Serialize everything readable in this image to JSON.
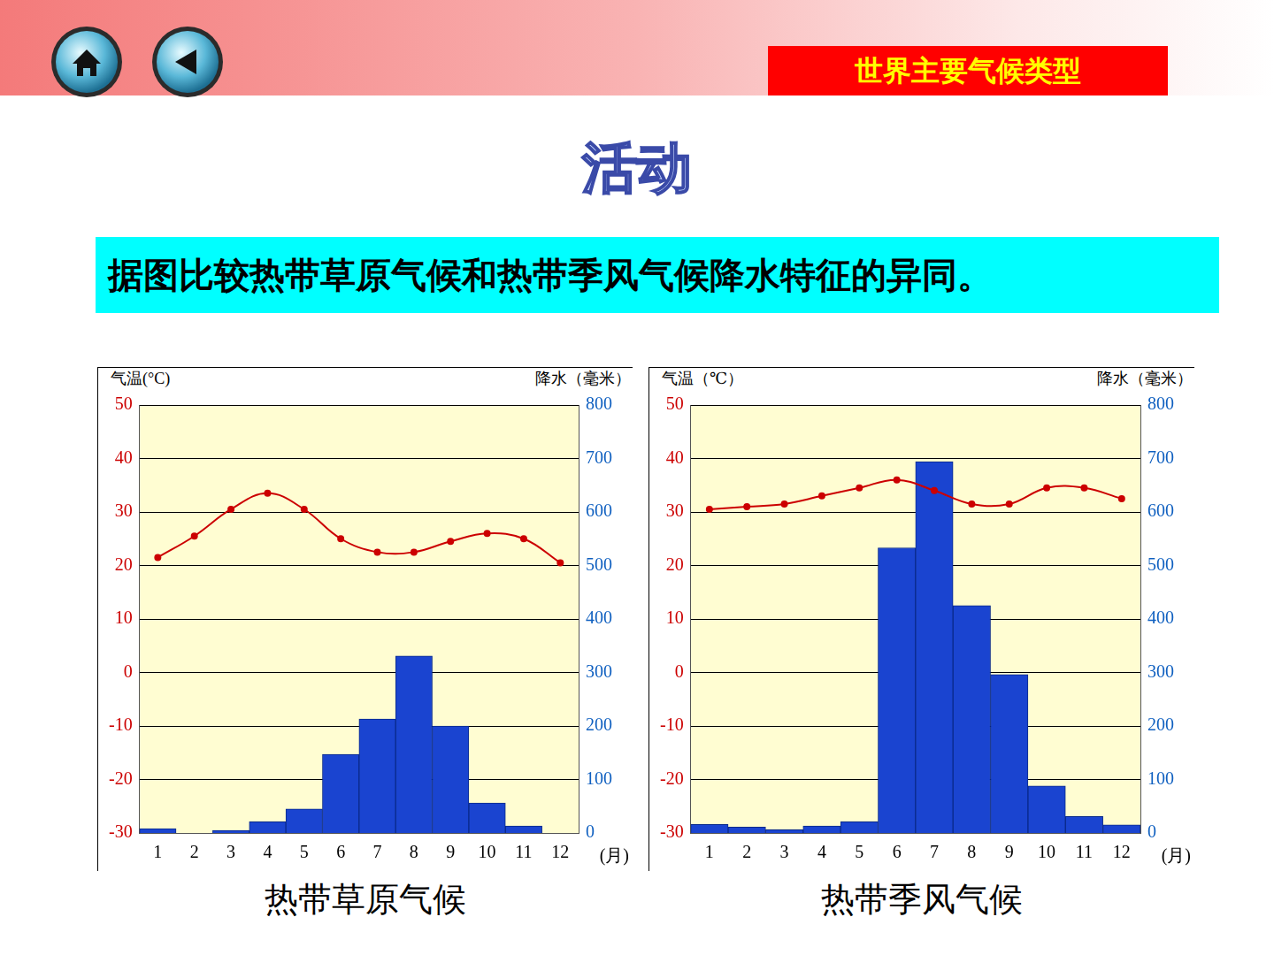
{
  "slide": {
    "header": "世界主要气候类型",
    "activity": "活动",
    "question": "据图比较热带草原气候和热带季风气候降水特征的异同。"
  },
  "chart_data": [
    {
      "type": "bar",
      "title": "热带草原气候",
      "y_label": "气温(°C)",
      "y2_label": "降水（毫米）",
      "x_label": "(月)",
      "categories": [
        "1",
        "2",
        "3",
        "4",
        "5",
        "6",
        "7",
        "8",
        "9",
        "10",
        "11",
        "12"
      ],
      "series": [
        {
          "type": "bar",
          "axis": "y2",
          "color": "#1a44d0",
          "values": [
            8,
            0,
            5,
            21,
            45,
            147,
            213,
            331,
            200,
            56,
            13,
            0
          ]
        },
        {
          "type": "line",
          "color": "#cc0000",
          "marker": "circle",
          "values": [
            21.5,
            25.5,
            30.5,
            33.5,
            30.5,
            25,
            22.5,
            22.5,
            24.5,
            26,
            25,
            20.5
          ]
        }
      ],
      "ylim": [
        -30,
        50
      ],
      "yticks": [
        -30,
        -20,
        -10,
        0,
        10,
        20,
        30,
        40,
        50
      ],
      "y2lim": [
        0,
        800
      ],
      "y2ticks": [
        0,
        100,
        200,
        300,
        400,
        500,
        600,
        700,
        800
      ],
      "grid": true
    },
    {
      "type": "bar",
      "title": "热带季风气候",
      "y_label": "气温（℃）",
      "y2_label": "降水（毫米）",
      "x_label": "(月)",
      "categories": [
        "1",
        "2",
        "3",
        "4",
        "5",
        "6",
        "7",
        "8",
        "9",
        "10",
        "11",
        "12"
      ],
      "series": [
        {
          "type": "bar",
          "axis": "y2",
          "color": "#1a44d0",
          "values": [
            16,
            11,
            6,
            13,
            21,
            533,
            694,
            425,
            296,
            88,
            31,
            15
          ]
        },
        {
          "type": "line",
          "color": "#cc0000",
          "marker": "circle",
          "values": [
            30.5,
            31,
            31.5,
            33,
            34.5,
            36,
            34,
            31.5,
            31.5,
            34.5,
            34.5,
            32.5
          ]
        }
      ],
      "ylim": [
        -30,
        50
      ],
      "yticks": [
        -30,
        -20,
        -10,
        0,
        10,
        20,
        30,
        40,
        50
      ],
      "y2lim": [
        0,
        800
      ],
      "y2ticks": [
        0,
        100,
        200,
        300,
        400,
        500,
        600,
        700,
        800
      ],
      "grid": true
    }
  ]
}
